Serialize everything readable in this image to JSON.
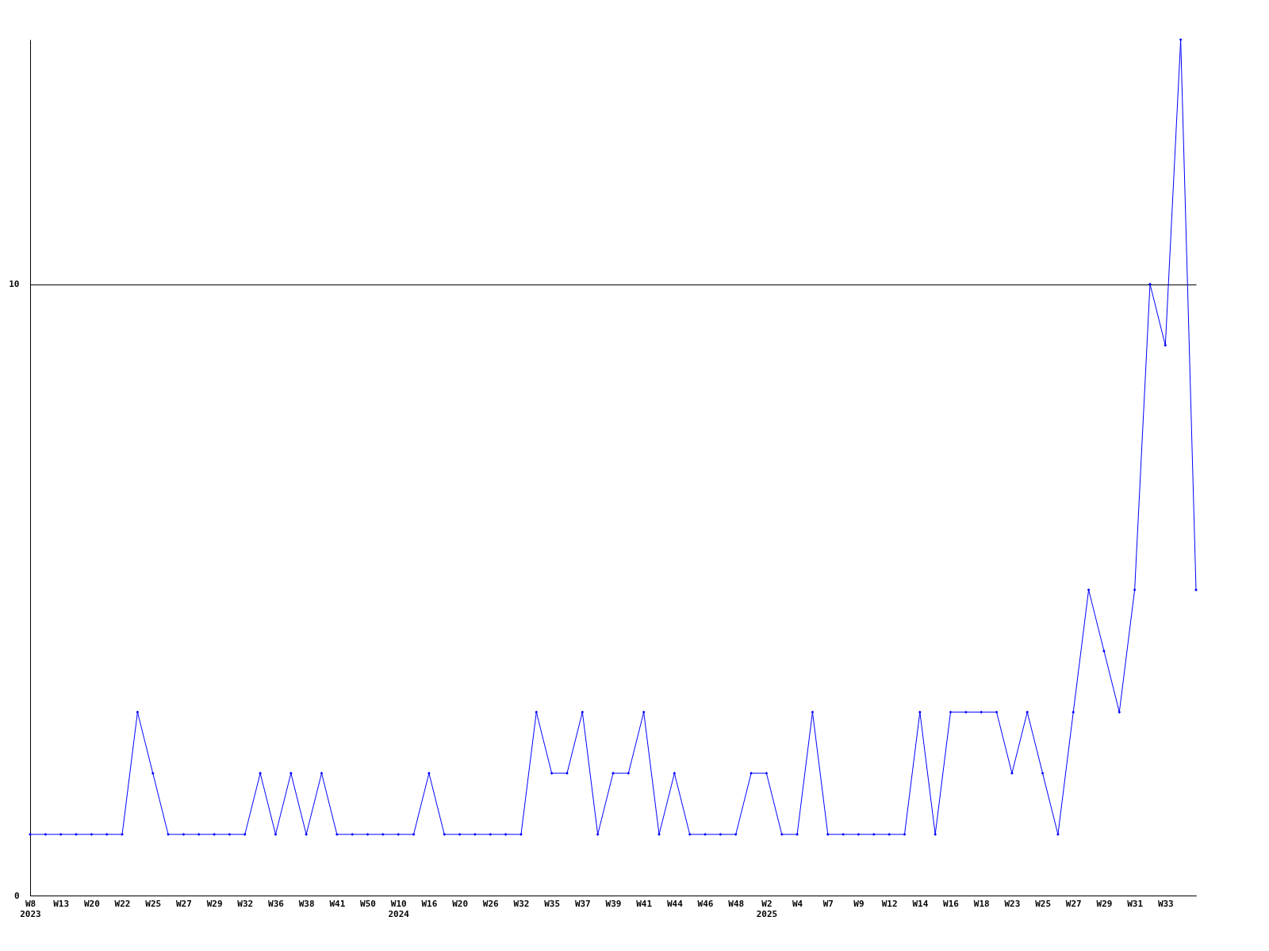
{
  "chart_data": {
    "type": "line",
    "categories": [
      "W8\n2023",
      null,
      "W13",
      null,
      "W20",
      null,
      "W22",
      null,
      "W25",
      null,
      "W27",
      null,
      "W29",
      null,
      "W32",
      null,
      "W36",
      null,
      "W38",
      null,
      "W41",
      null,
      "W50",
      null,
      "W10\n2024",
      null,
      "W16",
      null,
      "W20",
      null,
      "W26",
      null,
      "W32",
      null,
      "W35",
      null,
      "W37",
      null,
      "W39",
      null,
      "W41",
      null,
      "W44",
      null,
      "W46",
      null,
      "W48",
      null,
      "W2\n2025",
      null,
      "W4",
      null,
      "W7",
      null,
      "W9",
      null,
      "W12",
      null,
      "W14",
      null,
      "W16",
      null,
      "W18",
      null,
      "W23",
      null,
      "W25",
      null,
      "W27",
      null,
      "W29",
      null,
      "W31",
      null,
      "W33",
      null,
      null
    ],
    "series": [
      {
        "color": "#0000ff",
        "values": [
          1,
          1,
          1,
          1,
          1,
          1,
          1,
          3,
          2,
          1,
          1,
          1,
          1,
          1,
          1,
          2,
          1,
          2,
          1,
          2,
          1,
          1,
          1,
          1,
          1,
          1,
          2,
          1,
          1,
          1,
          1,
          1,
          1,
          3,
          2,
          2,
          3,
          1,
          2,
          2,
          3,
          1,
          2,
          1,
          1,
          1,
          1,
          2,
          2,
          1,
          1,
          3,
          1,
          1,
          1,
          1,
          1,
          1,
          3,
          1,
          3,
          3,
          3,
          3,
          2,
          3,
          2,
          1,
          3,
          5,
          4,
          3,
          5,
          10,
          9,
          14,
          5
        ]
      }
    ],
    "ylim": [
      0,
      14
    ],
    "yticks": [
      0,
      10
    ],
    "grid": "y",
    "marker": "diamond",
    "line_style": "solid"
  }
}
